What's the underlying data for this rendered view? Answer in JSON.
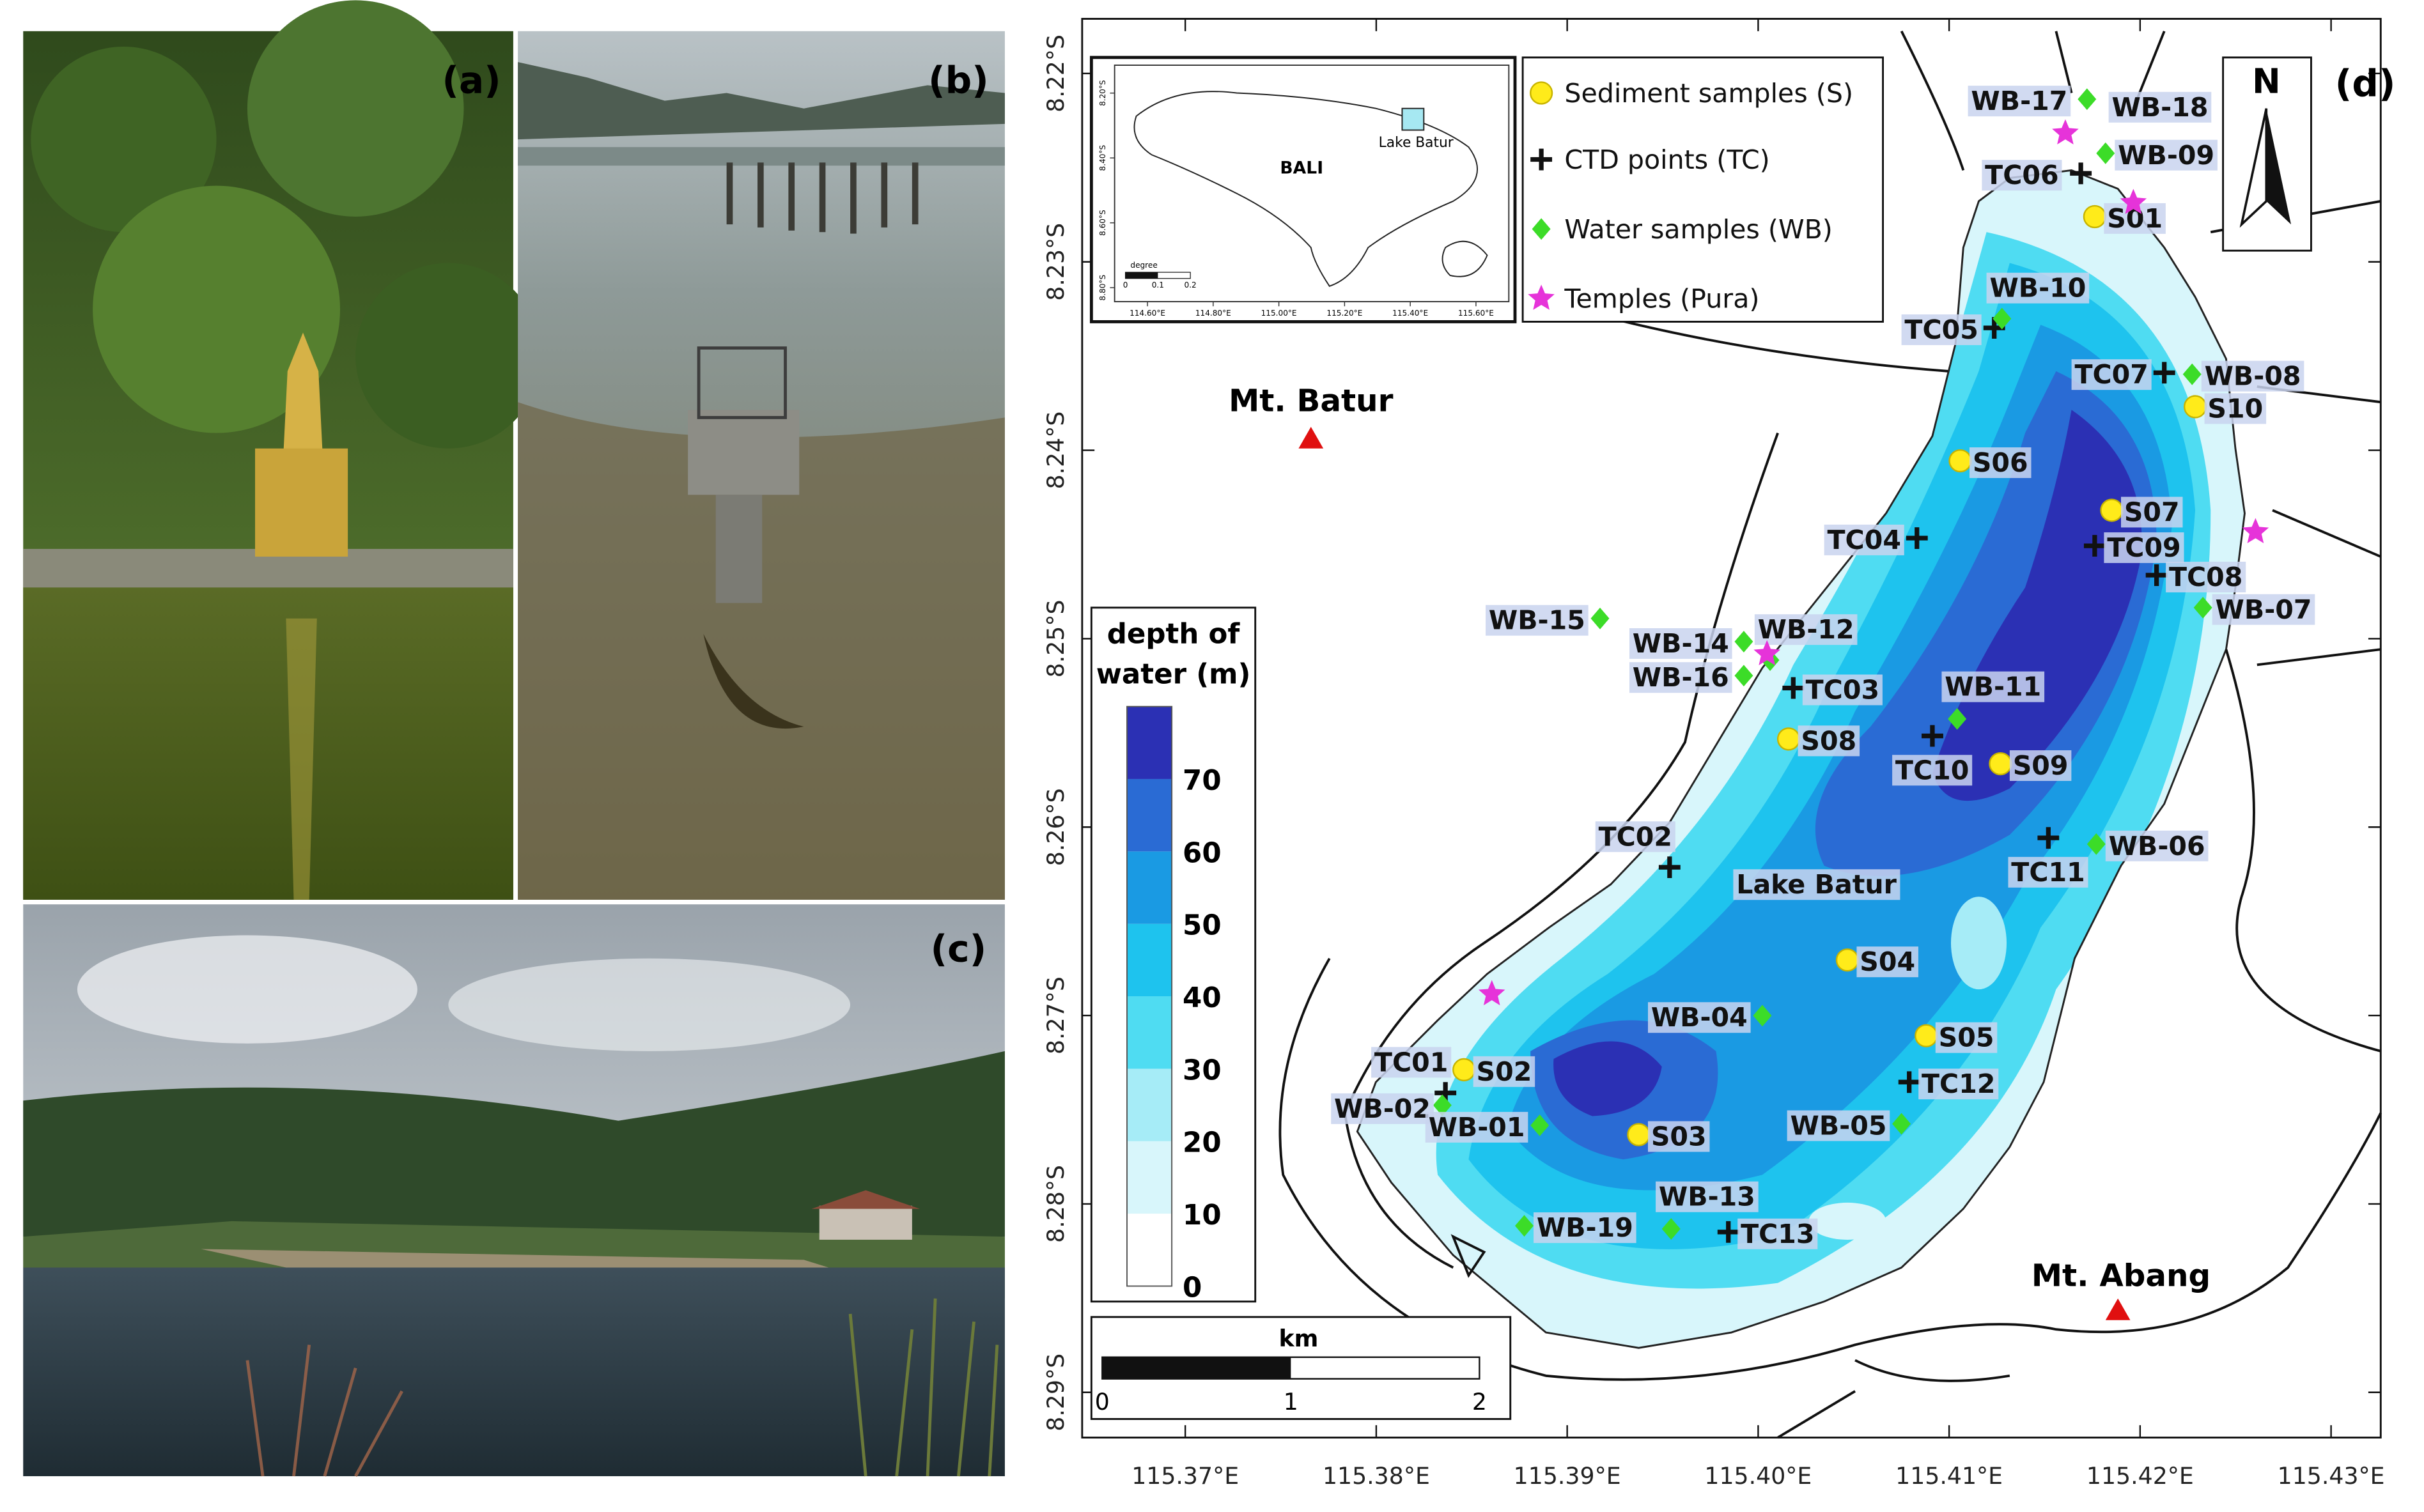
{
  "panel_labels": [
    "(a)",
    "(b)",
    "(c)",
    "(d)"
  ],
  "map": {
    "lon_lim": [
      115.3646,
      115.4326
    ],
    "lat_lim": [
      8.2171,
      8.2924
    ],
    "lon_ticks": [
      {
        "value": 115.37,
        "label": "115.37°E"
      },
      {
        "value": 115.38,
        "label": "115.38°E"
      },
      {
        "value": 115.39,
        "label": "115.39°E"
      },
      {
        "value": 115.4,
        "label": "115.40°E"
      },
      {
        "value": 115.41,
        "label": "115.41°E"
      },
      {
        "value": 115.42,
        "label": "115.42°E"
      },
      {
        "value": 115.43,
        "label": "115.43°E"
      }
    ],
    "lat_ticks": [
      {
        "value": 8.22,
        "label": "8.22°S"
      },
      {
        "value": 8.23,
        "label": "8.23°S"
      },
      {
        "value": 8.24,
        "label": "8.24°S"
      },
      {
        "value": 8.25,
        "label": "8.25°S"
      },
      {
        "value": 8.26,
        "label": "8.26°S"
      },
      {
        "value": 8.27,
        "label": "8.27°S"
      },
      {
        "value": 8.28,
        "label": "8.28°S"
      },
      {
        "value": 8.29,
        "label": "8.29°S"
      }
    ],
    "north": "N",
    "legend": [
      "Sediment samples (S)",
      "CTD points (TC)",
      "Water samples (WB)",
      "Temples (Pura)"
    ],
    "place_labels": [
      "Mt. Batur",
      "Mt. Abang",
      "Lake Batur"
    ],
    "sediment_samples": [
      "S01",
      "S10",
      "S06",
      "S07",
      "S08",
      "S09",
      "S04",
      "S05",
      "S02",
      "S03"
    ],
    "ctd_points": [
      "TC06",
      "TC05",
      "TC07",
      "TC04",
      "TC09",
      "TC08",
      "TC03",
      "TC10",
      "TC11",
      "TC02",
      "TC12",
      "TC01",
      "TC13"
    ],
    "water_samples": [
      "WB-17",
      "WB-18",
      "WB-09",
      "WB-10",
      "WB-08",
      "WB-07",
      "WB-15",
      "WB-14",
      "WB-12",
      "WB-16",
      "WB-11",
      "WB-06",
      "WB-04",
      "WB-02",
      "WB-01",
      "WB-05",
      "WB-19",
      "WB-13"
    ],
    "depth_scale": {
      "title_lines": [
        "depth of",
        "water (m)"
      ],
      "lim": [
        0,
        80
      ],
      "ticks": [
        0,
        10,
        20,
        30,
        40,
        50,
        60,
        70
      ],
      "colors": [
        "#ffffff",
        "#d8f6fb",
        "#a6ecf7",
        "#4fdcf2",
        "#1ec3ee",
        "#1a9ae3",
        "#2a6bd4",
        "#2b30b4"
      ]
    },
    "scale_bar": {
      "unit": "km",
      "ticks": [
        0,
        1,
        2
      ]
    },
    "inset": {
      "labels": [
        "BALI",
        "Lake Batur"
      ],
      "lon_lim": [
        114.5,
        115.7
      ],
      "lat_lim": [
        8.114,
        8.843
      ],
      "lon_ticks": [
        {
          "value": 114.6,
          "label": "114.60°E"
        },
        {
          "value": 114.8,
          "label": "114.80°E"
        },
        {
          "value": 115.0,
          "label": "115.00°E"
        },
        {
          "value": 115.2,
          "label": "115.20°E"
        },
        {
          "value": 115.4,
          "label": "115.40°E"
        },
        {
          "value": 115.6,
          "label": "115.60°E"
        }
      ],
      "lat_ticks": [
        {
          "value": 8.2,
          "label": "8.20°S"
        },
        {
          "value": 8.4,
          "label": "8.40°S"
        },
        {
          "value": 8.6,
          "label": "8.60°S"
        },
        {
          "value": 8.8,
          "label": "8.80°S"
        }
      ],
      "scale_title": "degree",
      "scale_ticks": [
        0,
        0.1,
        0.2
      ]
    }
  }
}
